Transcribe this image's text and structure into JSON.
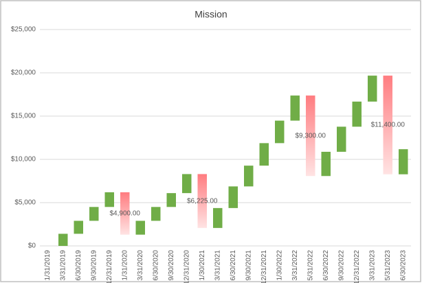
{
  "chart_data": {
    "type": "waterfall",
    "title": "Mission",
    "categories": [
      "1/31/2019",
      "3/31/2019",
      "6/30/2019",
      "9/30/2019",
      "12/31/2019",
      "1/31/2020",
      "3/31/2020",
      "6/30/2020",
      "9/30/2020",
      "12/31/2020",
      "1/30/2021",
      "3/31/2021",
      "6/30/2021",
      "9/30/2021",
      "12/31/2021",
      "1/30/2022",
      "3/31/2022",
      "5/31/2022",
      "6/30/2022",
      "9/30/2022",
      "12/31/2022",
      "3/31/2023",
      "5/31/2023",
      "6/30/2023"
    ],
    "values": [
      0,
      1400,
      1500,
      1600,
      1700,
      -4900,
      1600,
      1600,
      1600,
      2200,
      -6225,
      2300,
      2500,
      2400,
      2600,
      2600,
      2900,
      -9300,
      2800,
      2900,
      2900,
      3000,
      -11400,
      2900
    ],
    "value_labels": [
      null,
      null,
      null,
      null,
      null,
      "$4,900.00",
      null,
      null,
      null,
      null,
      "$6,225.00",
      null,
      null,
      null,
      null,
      null,
      null,
      "$9,300.00",
      null,
      null,
      null,
      null,
      "$11,400.00",
      null
    ],
    "increase_color": "#70ad47",
    "decrease_color": "#ff7c80",
    "ylim": [
      0,
      25000
    ],
    "yticks": [
      {
        "value": 0,
        "label": "$0"
      },
      {
        "value": 5000,
        "label": "$5,000"
      },
      {
        "value": 10000,
        "label": "$10,000"
      },
      {
        "value": 15000,
        "label": "$15,000"
      },
      {
        "value": 20000,
        "label": "$20,000"
      },
      {
        "value": 25000,
        "label": "$25,000"
      }
    ],
    "grid": true
  }
}
